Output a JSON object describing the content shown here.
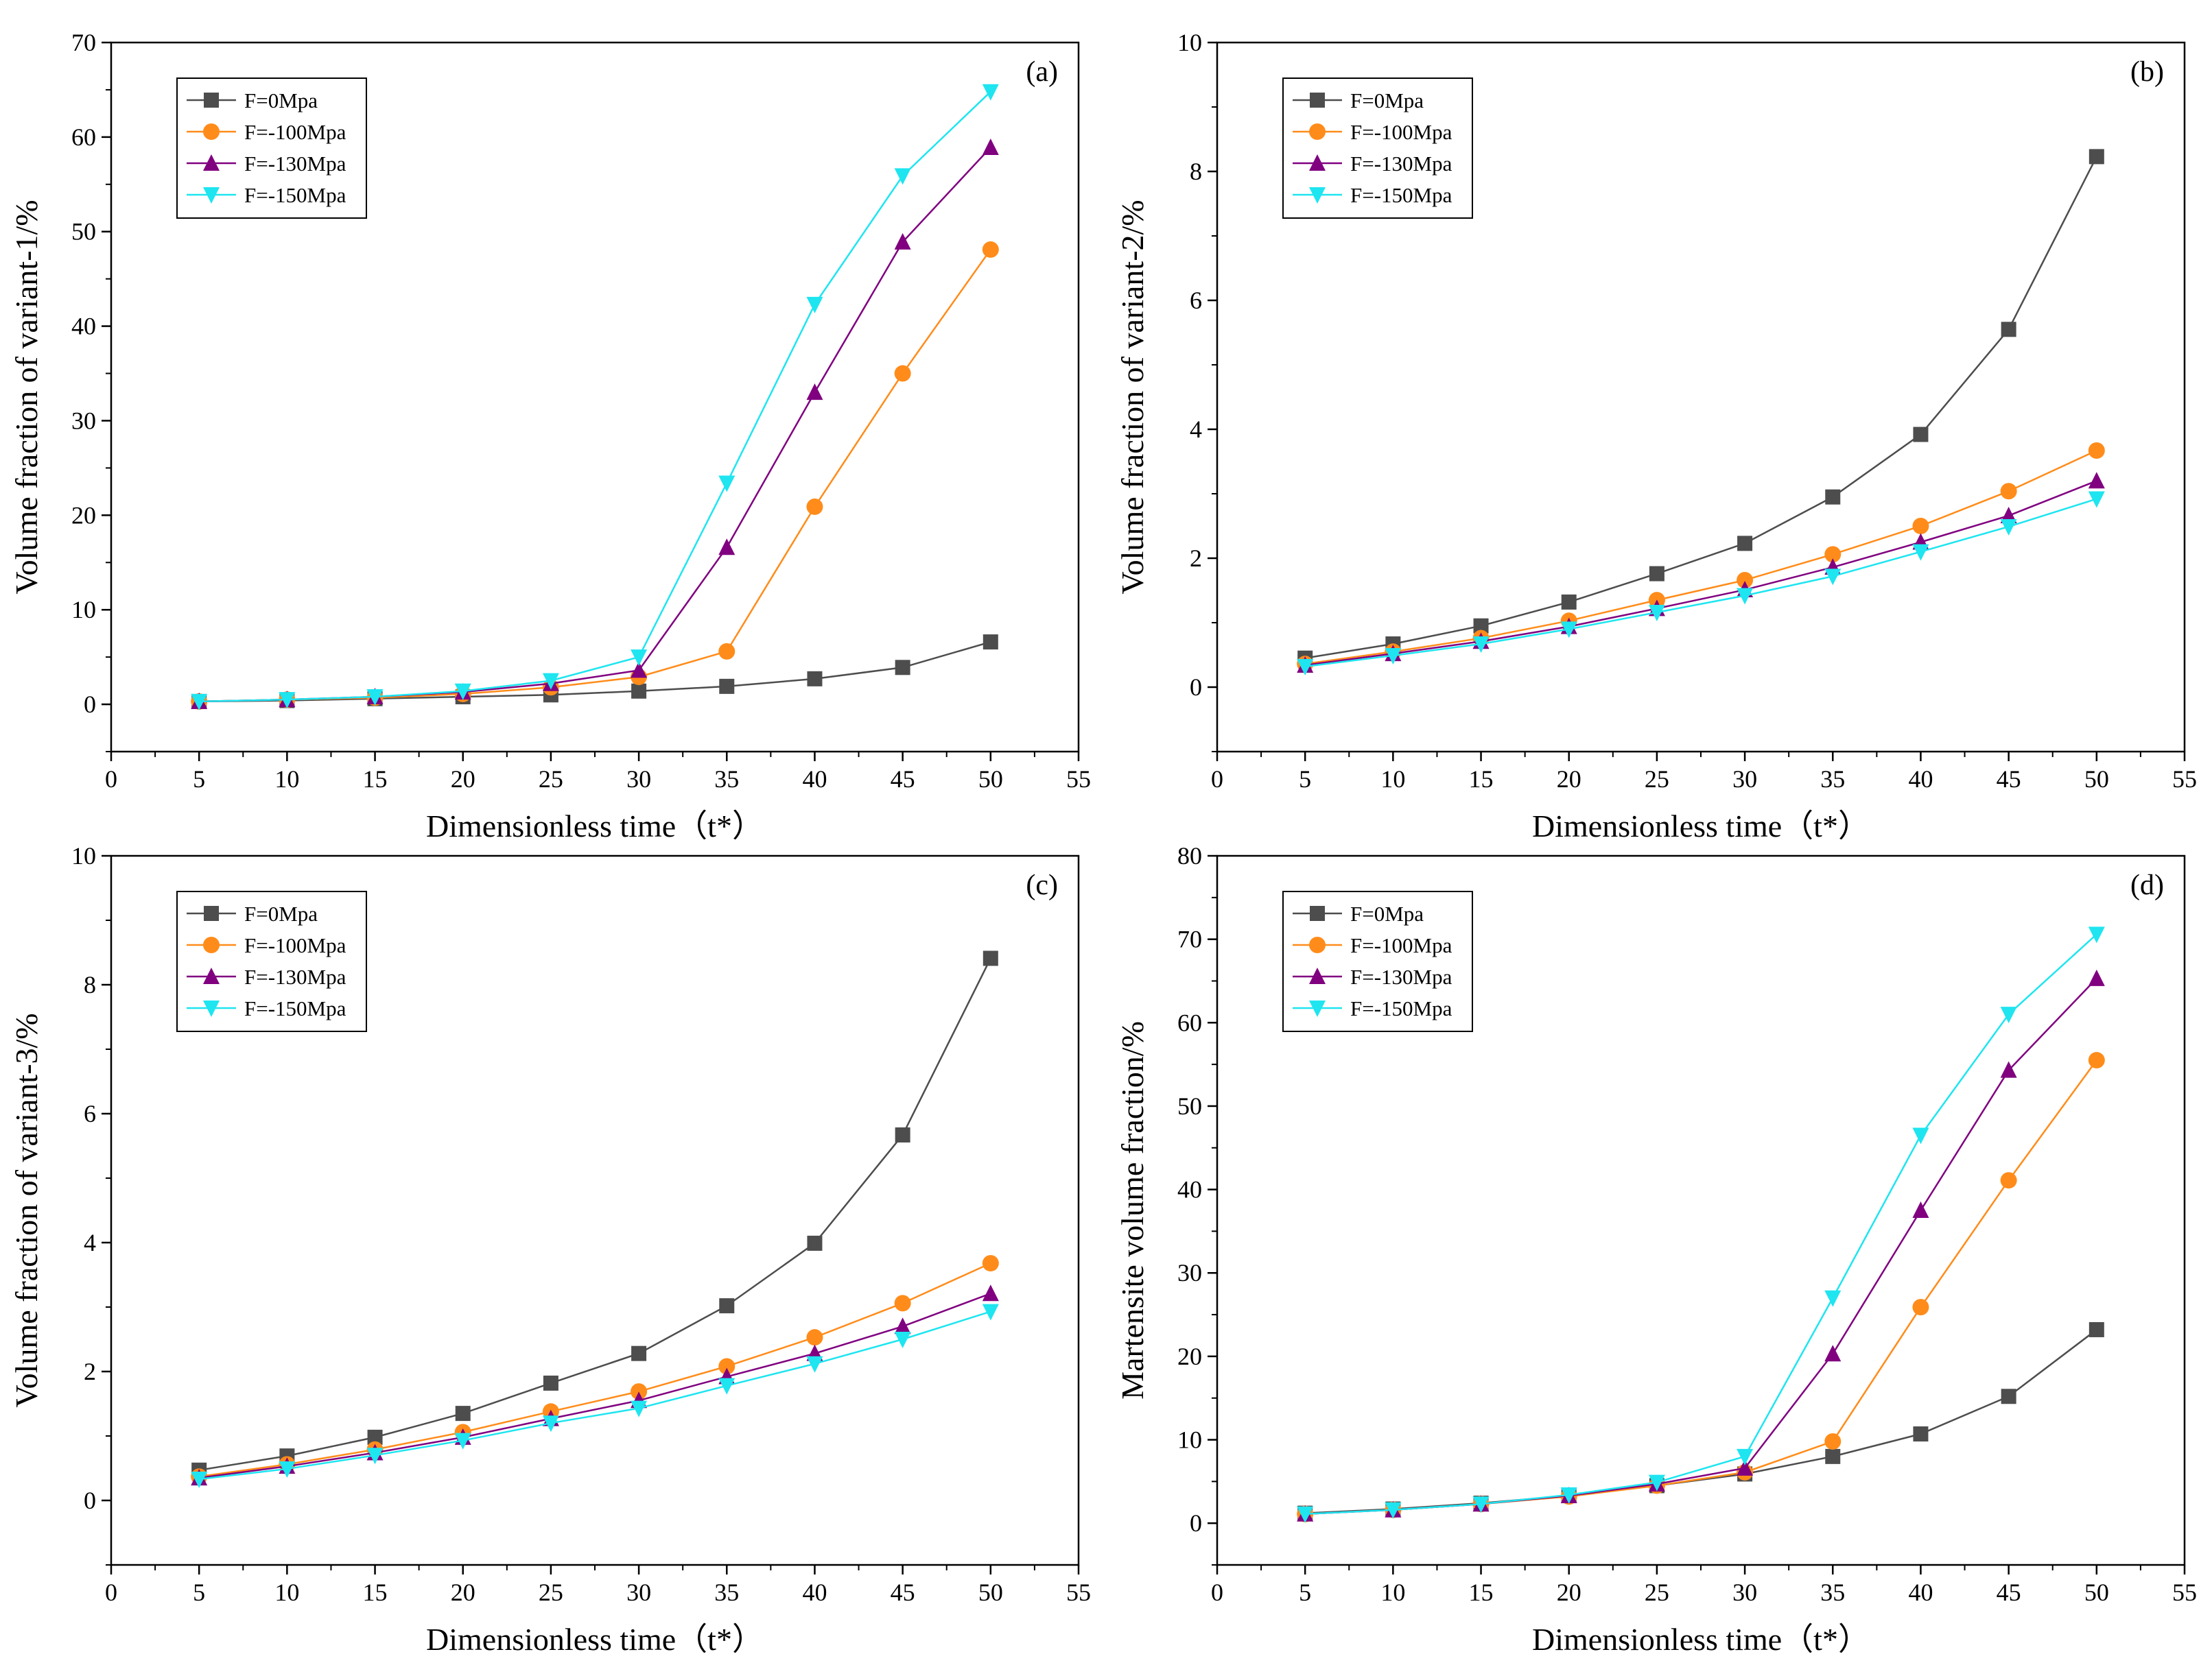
{
  "chart_data": [
    {
      "type": "line",
      "panel_label": "(a)",
      "xlabel": "Dimensionless time（t*）",
      "ylabel": "Volume fraction of variant-1/%",
      "xlim": [
        0,
        55
      ],
      "ylim": [
        -5,
        70
      ],
      "xticks": [
        0,
        5,
        10,
        15,
        20,
        25,
        30,
        35,
        40,
        45,
        50,
        55
      ],
      "yticks": [
        0,
        10,
        20,
        30,
        40,
        50,
        60,
        70
      ],
      "x": [
        5,
        10,
        15,
        20,
        25,
        30,
        35,
        40,
        45,
        50
      ],
      "legend_position": "top-left",
      "series": [
        {
          "name": "F=0Mpa",
          "color": "#4d4d4d",
          "marker": "square",
          "values": [
            0.3,
            0.4,
            0.6,
            0.8,
            1.0,
            1.4,
            1.9,
            2.7,
            3.9,
            6.6
          ]
        },
        {
          "name": "F=-100Mpa",
          "color": "#ff8c1a",
          "marker": "circle",
          "values": [
            0.3,
            0.5,
            0.7,
            1.1,
            1.8,
            2.9,
            5.6,
            20.9,
            35.0,
            48.1
          ]
        },
        {
          "name": "F=-130Mpa",
          "color": "#800080",
          "marker": "triangle-up",
          "values": [
            0.3,
            0.5,
            0.8,
            1.3,
            2.2,
            3.6,
            16.6,
            33.0,
            48.9,
            58.9
          ]
        },
        {
          "name": "F=-150Mpa",
          "color": "#1ee5f0",
          "marker": "triangle-down",
          "values": [
            0.3,
            0.5,
            0.8,
            1.4,
            2.5,
            5.0,
            23.4,
            42.3,
            55.9,
            64.8
          ]
        }
      ]
    },
    {
      "type": "line",
      "panel_label": "(b)",
      "xlabel": "Dimensionless time（t*）",
      "ylabel": "Volume fraction of variant-2/%",
      "xlim": [
        0,
        55
      ],
      "ylim": [
        -1,
        10
      ],
      "xticks": [
        0,
        5,
        10,
        15,
        20,
        25,
        30,
        35,
        40,
        45,
        50,
        55
      ],
      "yticks": [
        0,
        2,
        4,
        6,
        8,
        10
      ],
      "x": [
        5,
        10,
        15,
        20,
        25,
        30,
        35,
        40,
        45,
        50
      ],
      "legend_position": "top-left",
      "series": [
        {
          "name": "F=0Mpa",
          "color": "#4d4d4d",
          "marker": "square",
          "values": [
            0.45,
            0.67,
            0.95,
            1.32,
            1.76,
            2.23,
            2.95,
            3.92,
            5.55,
            8.23
          ]
        },
        {
          "name": "F=-100Mpa",
          "color": "#ff8c1a",
          "marker": "circle",
          "values": [
            0.36,
            0.55,
            0.76,
            1.03,
            1.35,
            1.66,
            2.06,
            2.5,
            3.04,
            3.67
          ]
        },
        {
          "name": "F=-130Mpa",
          "color": "#800080",
          "marker": "triangle-up",
          "values": [
            0.34,
            0.52,
            0.71,
            0.94,
            1.22,
            1.51,
            1.86,
            2.25,
            2.66,
            3.2
          ]
        },
        {
          "name": "F=-150Mpa",
          "color": "#1ee5f0",
          "marker": "triangle-down",
          "values": [
            0.32,
            0.49,
            0.67,
            0.9,
            1.16,
            1.42,
            1.72,
            2.1,
            2.49,
            2.92
          ]
        }
      ]
    },
    {
      "type": "line",
      "panel_label": "(c)",
      "xlabel": "Dimensionless time（t*）",
      "ylabel": "Volume fraction of variant-3/%",
      "xlim": [
        0,
        55
      ],
      "ylim": [
        -1,
        10
      ],
      "xticks": [
        0,
        5,
        10,
        15,
        20,
        25,
        30,
        35,
        40,
        45,
        50,
        55
      ],
      "yticks": [
        0,
        2,
        4,
        6,
        8,
        10
      ],
      "x": [
        5,
        10,
        15,
        20,
        25,
        30,
        35,
        40,
        45,
        50
      ],
      "legend_position": "top-left",
      "series": [
        {
          "name": "F=0Mpa",
          "color": "#4d4d4d",
          "marker": "square",
          "values": [
            0.47,
            0.69,
            0.98,
            1.35,
            1.82,
            2.28,
            3.02,
            3.99,
            5.67,
            8.41
          ]
        },
        {
          "name": "F=-100Mpa",
          "color": "#ff8c1a",
          "marker": "circle",
          "values": [
            0.37,
            0.56,
            0.79,
            1.06,
            1.38,
            1.69,
            2.08,
            2.53,
            3.06,
            3.68
          ]
        },
        {
          "name": "F=-130Mpa",
          "color": "#800080",
          "marker": "triangle-up",
          "values": [
            0.35,
            0.53,
            0.74,
            0.98,
            1.27,
            1.55,
            1.92,
            2.28,
            2.7,
            3.21
          ]
        },
        {
          "name": "F=-150Mpa",
          "color": "#1ee5f0",
          "marker": "triangle-down",
          "values": [
            0.33,
            0.49,
            0.7,
            0.93,
            1.2,
            1.43,
            1.78,
            2.12,
            2.5,
            2.93
          ]
        }
      ]
    },
    {
      "type": "line",
      "panel_label": "(d)",
      "xlabel": "Dimensionless time（t*）",
      "ylabel": "Martensite volume fraction/%",
      "xlim": [
        0,
        55
      ],
      "ylim": [
        -5,
        80
      ],
      "xticks": [
        0,
        5,
        10,
        15,
        20,
        25,
        30,
        35,
        40,
        45,
        50,
        55
      ],
      "yticks": [
        0,
        10,
        20,
        30,
        40,
        50,
        60,
        70,
        80
      ],
      "x": [
        5,
        10,
        15,
        20,
        25,
        30,
        35,
        40,
        45,
        50
      ],
      "legend_position": "top-left",
      "series": [
        {
          "name": "F=0Mpa",
          "color": "#4d4d4d",
          "marker": "square",
          "values": [
            1.2,
            1.7,
            2.4,
            3.3,
            4.5,
            5.9,
            8.0,
            10.7,
            15.2,
            23.2
          ]
        },
        {
          "name": "F=-100Mpa",
          "color": "#ff8c1a",
          "marker": "circle",
          "values": [
            1.1,
            1.6,
            2.3,
            3.2,
            4.5,
            6.1,
            9.8,
            25.9,
            41.1,
            55.5
          ]
        },
        {
          "name": "F=-130Mpa",
          "color": "#800080",
          "marker": "triangle-up",
          "values": [
            1.1,
            1.6,
            2.3,
            3.3,
            4.7,
            6.6,
            20.3,
            37.5,
            54.3,
            65.3
          ]
        },
        {
          "name": "F=-150Mpa",
          "color": "#1ee5f0",
          "marker": "triangle-down",
          "values": [
            1.1,
            1.6,
            2.3,
            3.4,
            4.9,
            8.0,
            27.0,
            46.5,
            61.0,
            70.6
          ]
        }
      ]
    }
  ]
}
